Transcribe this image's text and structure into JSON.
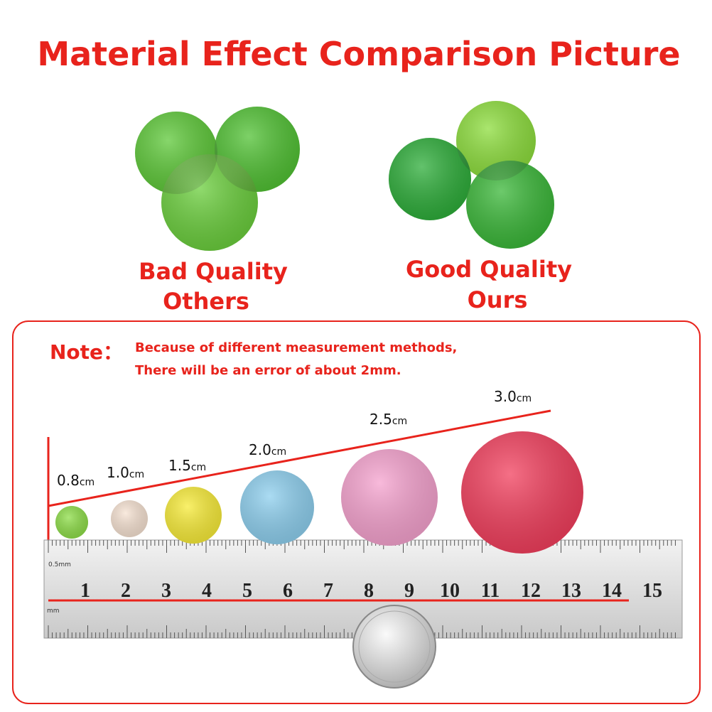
{
  "header": {
    "title": "Material Effect Comparison Picture"
  },
  "comparison": [
    {
      "label": "Bad Quality",
      "sublabel": "Others"
    },
    {
      "label": "Good Quality",
      "sublabel": "Ours"
    }
  ],
  "note": {
    "heading": "Note：",
    "lines": [
      "Because of different measurement methods,",
      "There will be an error of about 2mm."
    ]
  },
  "sizes": [
    {
      "value": "0.8",
      "unit": "cm"
    },
    {
      "value": "1.0",
      "unit": "cm"
    },
    {
      "value": "1.5",
      "unit": "cm"
    },
    {
      "value": "2.0",
      "unit": "cm"
    },
    {
      "value": "2.5",
      "unit": "cm"
    },
    {
      "value": "3.0",
      "unit": "cm"
    }
  ],
  "ruler": {
    "numbers": [
      "1",
      "2",
      "3",
      "4",
      "5",
      "6",
      "7",
      "8",
      "9",
      "10",
      "11",
      "12",
      "13",
      "14",
      "15"
    ],
    "unit_labels": [
      "0.5mm",
      "mm"
    ]
  }
}
